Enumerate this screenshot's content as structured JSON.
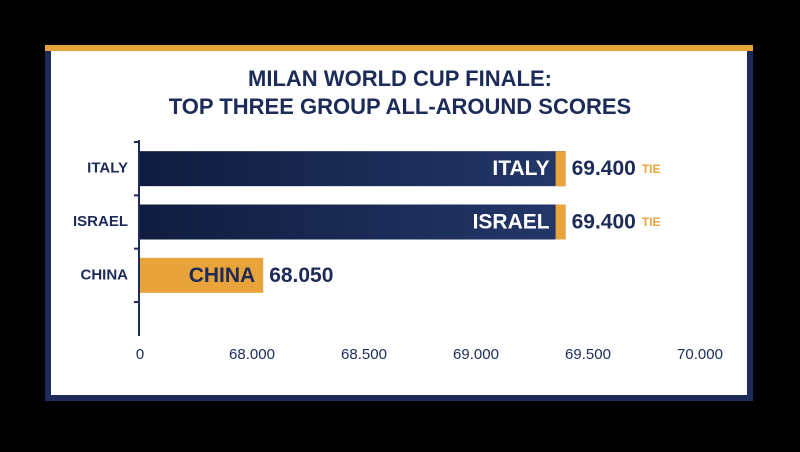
{
  "chart_data": {
    "type": "hbar",
    "title": [
      "MILAN WORLD CUP FINALE:",
      "TOP THREE GROUP ALL-AROUND SCORES"
    ],
    "categories": [
      "ITALY",
      "ISRAEL",
      "CHINA"
    ],
    "values": [
      69.4,
      69.4,
      68.05
    ],
    "value_labels": [
      "69.400",
      "69.400",
      "68.050"
    ],
    "value_notes": [
      "TIE",
      "TIE",
      null
    ],
    "colors": [
      "#1c2b57",
      "#1c2b57",
      "#e9a33b"
    ],
    "xlim": [
      0,
      70
    ],
    "axis_break": [
      0,
      67.5
    ],
    "xticks": [
      0,
      {
        "value": 68,
        "label": "68.000"
      },
      {
        "value": 68.5,
        "label": "68.500"
      },
      {
        "value": 69,
        "label": "69.000"
      },
      {
        "value": 69.5,
        "label": "69.500"
      },
      {
        "value": 70,
        "label": "70.000"
      }
    ]
  }
}
